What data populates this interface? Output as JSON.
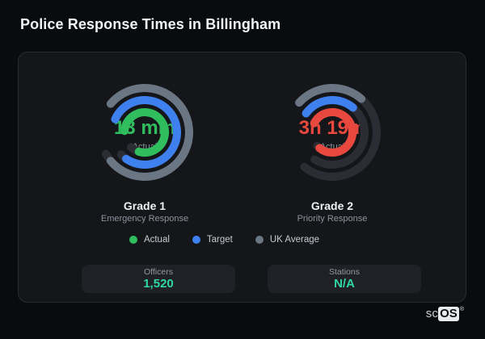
{
  "title": "Police Response Times in Billingham",
  "chart_data": {
    "type": "radial-gauge",
    "title": "Police Response Times in Billingham",
    "legend": [
      {
        "label": "Actual",
        "color": "#2fbd5d"
      },
      {
        "label": "Target",
        "color": "#3f80ef"
      },
      {
        "label": "UK Average",
        "color": "#6b7684"
      }
    ],
    "gauges": [
      {
        "name": "Grade 1",
        "subtitle": "Emergency Response",
        "actual_label": "13 min",
        "actual_sub": "Actual",
        "value_color": "#2fbd5d",
        "rings": [
          {
            "series": "UK Average",
            "color": "#6b7684",
            "radius": 55,
            "start_deg": 310,
            "arc_deg": 280,
            "track_deg": 291
          },
          {
            "series": "Target",
            "color": "#3f80ef",
            "radius": 40,
            "start_deg": 294,
            "arc_deg": 281,
            "track_deg": 293
          },
          {
            "series": "Actual",
            "color": "#2fbd5d",
            "radius": 25,
            "start_deg": 274,
            "arc_deg": 283,
            "track_deg": 309
          }
        ]
      },
      {
        "name": "Grade 2",
        "subtitle": "Priority Response",
        "actual_label": "3h 19m",
        "actual_sub": "Actual",
        "value_color": "#e8483d",
        "rings": [
          {
            "series": "UK Average",
            "color": "#6b7684",
            "radius": 55,
            "start_deg": 312,
            "arc_deg": 89,
            "track_deg": 267
          },
          {
            "series": "Target",
            "color": "#3f80ef",
            "radius": 40,
            "start_deg": 306,
            "arc_deg": 94,
            "track_deg": 267
          },
          {
            "series": "Actual",
            "color": "#e8483d",
            "radius": 25,
            "start_deg": 297,
            "arc_deg": 282,
            "track_deg": 291
          }
        ]
      }
    ]
  },
  "stats": [
    {
      "label": "Officers",
      "value": "1,520"
    },
    {
      "label": "Stations",
      "value": "N/A"
    }
  ],
  "logo": {
    "prefix": "sc",
    "badge": "OS",
    "reg": "®"
  },
  "colors": {
    "page_bg": "#0a0b0f",
    "card_bg": "#15161a",
    "card_border": "#2a2b32",
    "track": "#2c2d34",
    "value_teal": "#2fd7a2",
    "text_muted": "#8d939d",
    "text_light": "#eef0f3"
  }
}
